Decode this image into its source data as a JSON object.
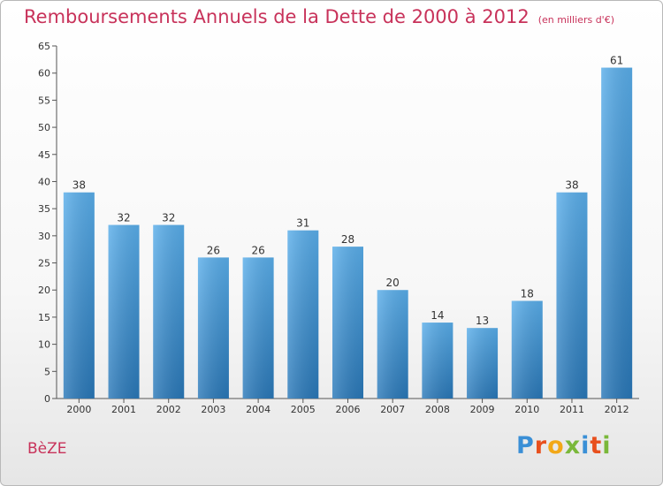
{
  "header": {
    "title": "Remboursements Annuels de la Dette de 2000 à 2012",
    "subtitle": "(en milliers d'€)"
  },
  "footer": {
    "town": "BèZE",
    "brand": "Proxiti",
    "brand_colors": [
      "#3a8fd6",
      "#e8501e",
      "#f2a818",
      "#7ab83a",
      "#3a8fd6",
      "#e8501e",
      "#7ab83a"
    ]
  },
  "chart_data": {
    "type": "bar",
    "title": "Remboursements Annuels de la Dette de 2000 à 2012",
    "xlabel": "",
    "ylabel": "",
    "categories": [
      "2000",
      "2001",
      "2002",
      "2003",
      "2004",
      "2005",
      "2006",
      "2007",
      "2008",
      "2009",
      "2010",
      "2011",
      "2012"
    ],
    "values": [
      38,
      32,
      32,
      26,
      26,
      31,
      28,
      20,
      14,
      13,
      18,
      38,
      61
    ],
    "ylim": [
      0,
      65
    ],
    "yticks": [
      0,
      5,
      10,
      15,
      20,
      25,
      30,
      35,
      40,
      45,
      50,
      55,
      60,
      65
    ],
    "grid": false,
    "bar_color_top": "#5aaeea",
    "bar_color_bottom": "#2a78b8"
  }
}
